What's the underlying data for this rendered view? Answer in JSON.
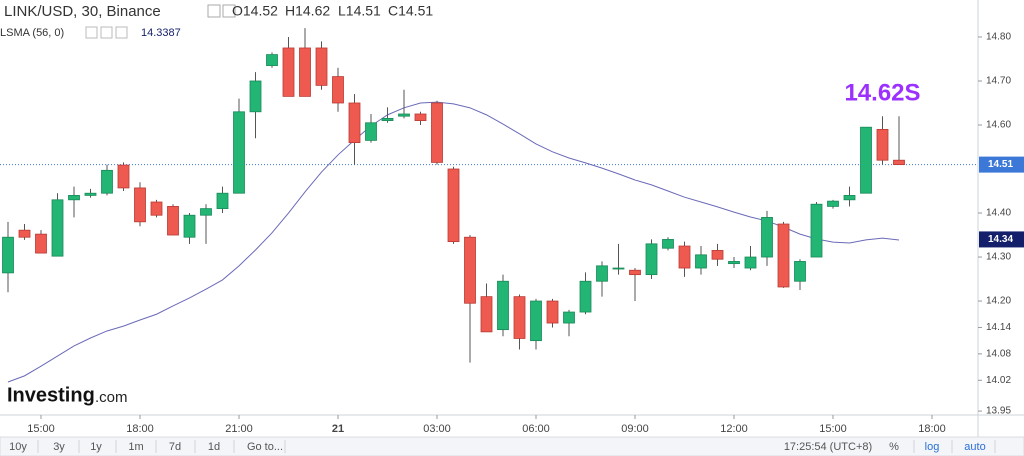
{
  "chart_data": {
    "type": "candlestick",
    "title": "LINK/USD, 30, Binance",
    "legend_values": [
      "O14.52",
      "H14.62",
      "L14.51",
      "C14.51"
    ],
    "categories": [
      null,
      null,
      "15:00",
      null,
      null,
      null,
      null,
      null,
      "18:00",
      null,
      null,
      null,
      null,
      null,
      "21:00",
      null,
      null,
      null,
      null,
      null,
      "21",
      null,
      null,
      null,
      null,
      null,
      "03:00",
      null,
      null,
      null,
      null,
      null,
      "06:00",
      null,
      null,
      null,
      null,
      null,
      "09:00",
      null,
      null,
      null,
      null,
      null,
      "12:00",
      null,
      null,
      null,
      null,
      null,
      "15:00",
      null,
      null,
      null,
      null,
      null,
      "18:00"
    ],
    "open": [
      14.264,
      14.361,
      14.352,
      14.302,
      14.43,
      14.44,
      14.445,
      14.509,
      14.457,
      14.425,
      14.415,
      14.345,
      14.395,
      14.41,
      14.445,
      14.63,
      14.735,
      14.775,
      14.775,
      14.775,
      14.71,
      14.65,
      14.565,
      14.61,
      14.62,
      14.625,
      14.65,
      14.5,
      14.345,
      14.21,
      14.135,
      14.21,
      14.11,
      14.2,
      14.15,
      14.175,
      14.245,
      14.275,
      14.27,
      14.26,
      14.32,
      14.325,
      14.275,
      14.315,
      14.285,
      14.275,
      14.3,
      14.375,
      14.245,
      14.3,
      14.415,
      14.43,
      14.445,
      14.59,
      14.52,
      null,
      null
    ],
    "high": [
      14.38,
      14.375,
      14.361,
      14.445,
      14.46,
      14.455,
      14.51,
      14.515,
      14.47,
      14.43,
      14.42,
      14.4,
      14.42,
      14.46,
      14.66,
      14.72,
      14.765,
      14.8,
      14.82,
      14.79,
      14.73,
      14.67,
      14.625,
      14.64,
      14.68,
      14.63,
      14.655,
      14.505,
      14.35,
      14.24,
      14.26,
      14.215,
      14.205,
      14.205,
      14.18,
      14.265,
      14.29,
      14.33,
      14.275,
      14.34,
      14.345,
      14.335,
      14.325,
      14.33,
      14.3,
      14.325,
      14.405,
      14.38,
      14.295,
      14.425,
      14.43,
      14.46,
      14.595,
      14.62,
      14.62,
      null,
      null
    ],
    "low": [
      14.22,
      14.339,
      14.309,
      14.302,
      14.39,
      14.435,
      14.44,
      14.45,
      14.37,
      14.39,
      14.35,
      14.33,
      14.33,
      14.4,
      14.445,
      14.57,
      14.73,
      14.665,
      14.665,
      14.68,
      14.63,
      14.51,
      14.56,
      14.605,
      14.615,
      14.6,
      14.51,
      14.33,
      14.06,
      14.13,
      14.12,
      14.09,
      14.09,
      14.14,
      14.12,
      14.17,
      14.21,
      14.26,
      14.2,
      14.25,
      14.315,
      14.255,
      14.26,
      14.28,
      14.275,
      14.27,
      14.28,
      14.23,
      14.225,
      14.3,
      14.41,
      14.415,
      14.445,
      14.51,
      14.51,
      null,
      null
    ],
    "close": [
      14.345,
      14.345,
      14.309,
      14.43,
      14.44,
      14.445,
      14.497,
      14.457,
      14.38,
      14.395,
      14.35,
      14.395,
      14.41,
      14.445,
      14.63,
      14.7,
      14.76,
      14.665,
      14.665,
      14.69,
      14.65,
      14.56,
      14.605,
      14.615,
      14.625,
      14.61,
      14.515,
      14.335,
      14.195,
      14.13,
      14.245,
      14.115,
      14.2,
      14.15,
      14.175,
      14.245,
      14.28,
      14.275,
      14.26,
      14.33,
      14.34,
      14.275,
      14.305,
      14.295,
      14.29,
      14.3,
      14.39,
      14.232,
      14.29,
      14.42,
      14.427,
      14.44,
      14.595,
      14.52,
      14.51,
      null,
      null
    ],
    "up_color": "#22b573",
    "down_color": "#ef5a50",
    "indicator": {
      "name": "LSMA (56, 0)",
      "last_value": 14.3387,
      "color": "#6a6ab8",
      "values": [
        14.016,
        14.03,
        14.052,
        14.075,
        14.098,
        14.116,
        14.132,
        14.143,
        14.157,
        14.17,
        14.189,
        14.207,
        14.227,
        14.248,
        14.28,
        14.316,
        14.355,
        14.4,
        14.448,
        14.493,
        14.532,
        14.566,
        14.598,
        14.623,
        14.639,
        14.65,
        14.652,
        14.648,
        14.639,
        14.623,
        14.602,
        14.58,
        14.557,
        14.539,
        14.525,
        14.514,
        14.502,
        14.489,
        14.475,
        14.464,
        14.45,
        14.436,
        14.425,
        14.414,
        14.402,
        14.391,
        14.382,
        14.368,
        14.352,
        14.341,
        14.334,
        14.332,
        14.339,
        14.343,
        14.3387,
        null,
        null
      ]
    },
    "price_tags": [
      {
        "value": 14.51,
        "color": "#3c78d8"
      },
      {
        "value": 14.34,
        "color": "#131f6b"
      }
    ],
    "annotation": {
      "text": "14.62S",
      "color": "#9b30ff"
    },
    "ylim": [
      13.907,
      14.884
    ],
    "yticks": [
      {
        "value": 14.8,
        "label": "14.80"
      },
      {
        "value": 14.7,
        "label": "14.70"
      },
      {
        "value": 14.6,
        "label": "14.60"
      },
      {
        "value": 14.4,
        "label": "14.40"
      },
      {
        "value": 14.3,
        "label": "14.30"
      },
      {
        "value": 14.2,
        "label": "14.20"
      },
      {
        "value": 14.14,
        "label": "14.14"
      },
      {
        "value": 14.08,
        "label": "14.08"
      },
      {
        "value": 14.02,
        "label": "14.02"
      },
      {
        "value": 13.95,
        "label": "13.95"
      }
    ],
    "watermark": [
      "Investing",
      ".com"
    ]
  },
  "toolbar": [
    "10y",
    "3y",
    "1y",
    "1m",
    "7d",
    "1d",
    "Go to...",
    "17:25:54 (UTC+8)",
    "%",
    "log",
    "auto"
  ]
}
